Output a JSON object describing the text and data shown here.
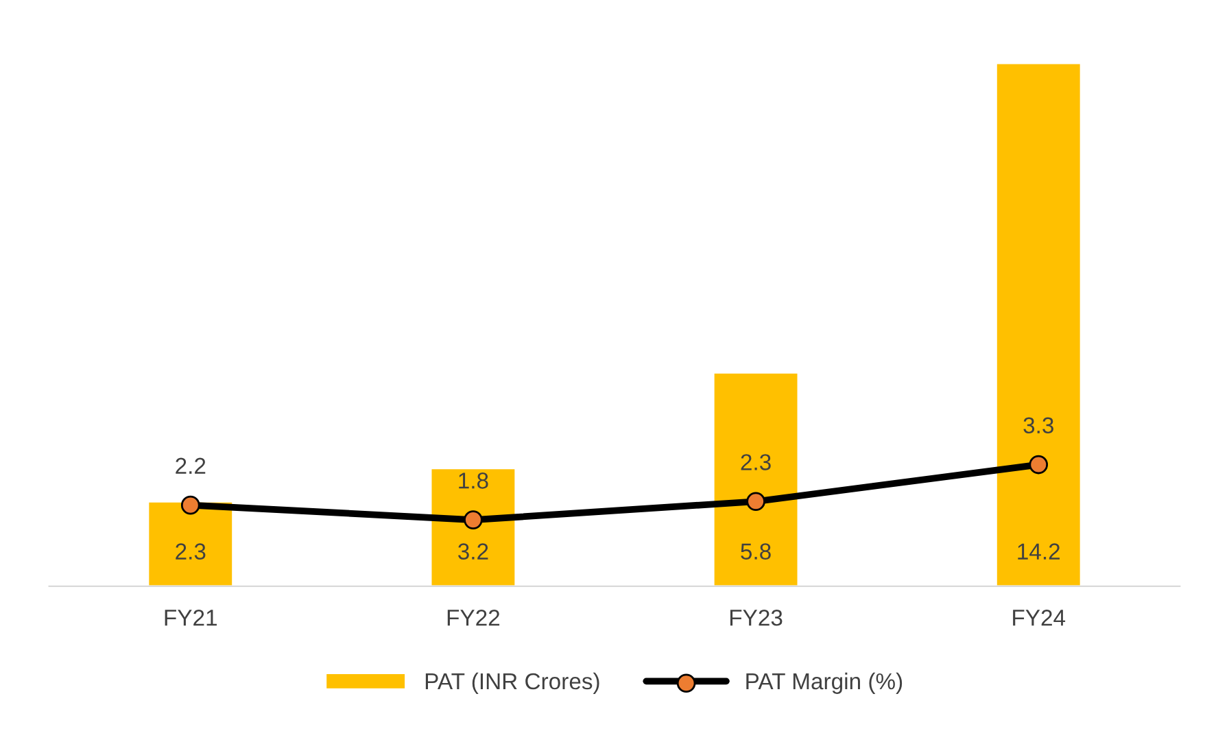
{
  "chart_data": {
    "type": "bar",
    "categories": [
      "FY21",
      "FY22",
      "FY23",
      "FY24"
    ],
    "series": [
      {
        "name": "PAT (INR Crores)",
        "color": "#ffc000",
        "values": [
          2.3,
          3.2,
          5.8,
          14.2
        ]
      },
      {
        "name": "PAT Margin (%)",
        "type": "line",
        "color": "#000000",
        "colors": [
          "#ed7d31",
          "#ed7d31",
          "#ed7d31",
          "#ed7d31"
        ],
        "marker": "circle",
        "values": [
          2.2,
          1.8,
          2.3,
          3.3
        ]
      }
    ],
    "tick_labels": "x",
    "data_labels": true,
    "legend": "bottom"
  }
}
